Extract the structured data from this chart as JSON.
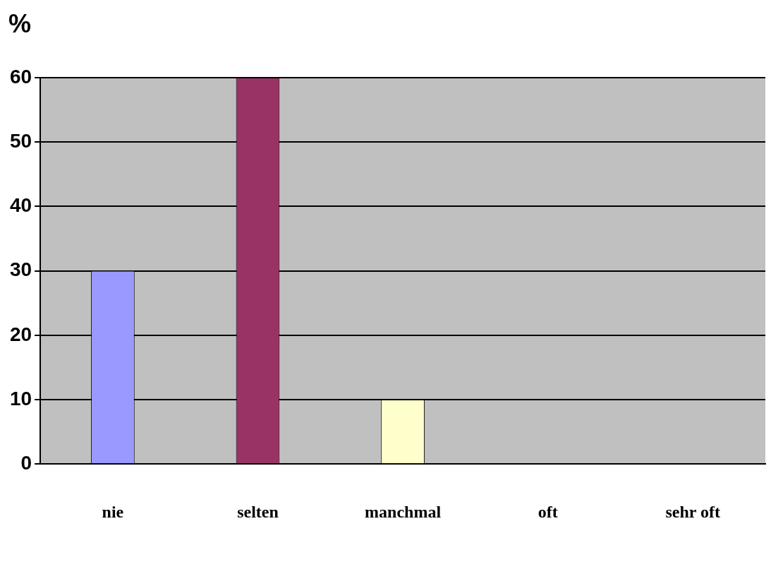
{
  "chart_data": {
    "type": "bar",
    "ylabel": "%",
    "categories": [
      "nie",
      "selten",
      "manchmal",
      "oft",
      "sehr oft"
    ],
    "values": [
      30,
      60,
      10,
      0,
      0
    ],
    "colors": [
      "#9999ff",
      "#993366",
      "#ffffcc",
      "#ccffff",
      "#660066"
    ],
    "ylim": [
      0,
      60
    ],
    "yticks": [
      0,
      10,
      20,
      30,
      40,
      50,
      60
    ],
    "grid": "y",
    "legend": false
  }
}
